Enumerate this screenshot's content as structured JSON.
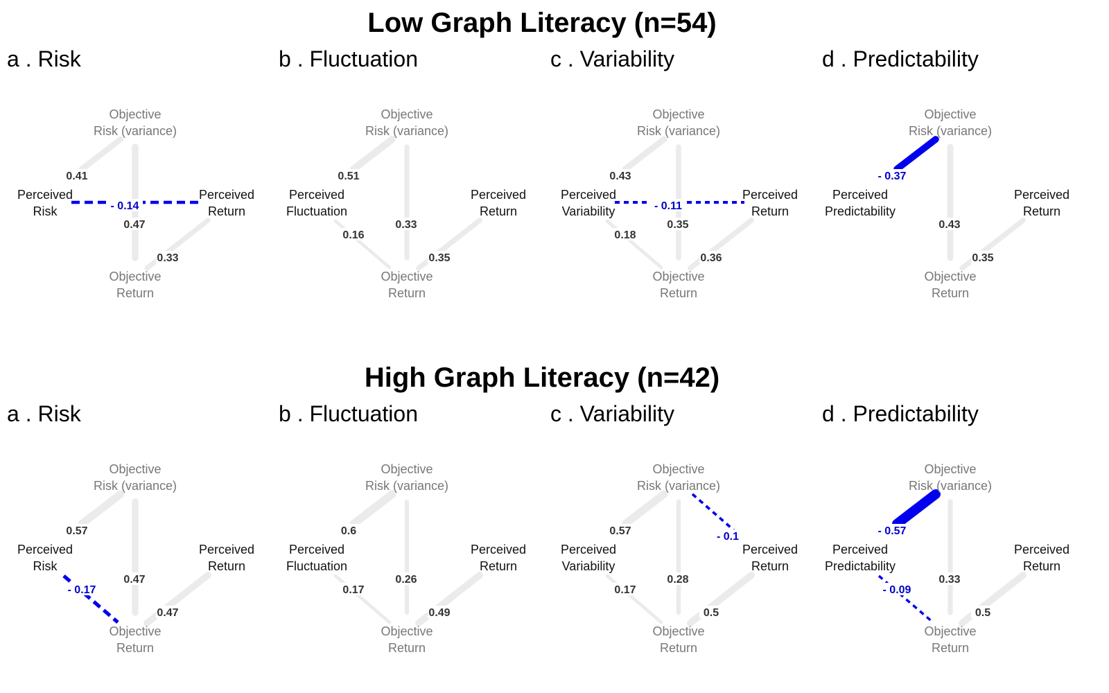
{
  "colors": {
    "positive_edge": "#ebebeb",
    "negative_edge": "#0000ee",
    "positive_label": "#333333",
    "negative_label": "#0000cc",
    "objective_node_text": "#777777",
    "perceived_node_text": "#111111"
  },
  "nodes": {
    "objective_risk": [
      "Objective",
      "Risk (variance)"
    ],
    "objective_return": [
      "Objective",
      "Return"
    ],
    "perceived_return": [
      "Perceived",
      "Return"
    ]
  },
  "groups": [
    {
      "title": "Low Graph Literacy (n=54)",
      "panels": [
        {
          "title": "a . Risk",
          "perceived_measure": [
            "Perceived",
            "Risk"
          ],
          "edges": [
            {
              "from": "objective_risk",
              "to": "perceived_measure",
              "weight": 0.41,
              "label": "0.41",
              "sign": "positive"
            },
            {
              "from": "objective_risk",
              "to": "objective_return",
              "weight": 0.47,
              "label": "0.47",
              "sign": "positive"
            },
            {
              "from": "perceived_return",
              "to": "objective_return",
              "weight": 0.33,
              "label": "0.33",
              "sign": "positive"
            },
            {
              "from": "perceived_measure",
              "to": "perceived_return",
              "weight": -0.14,
              "label": "- 0.14",
              "sign": "negative"
            }
          ]
        },
        {
          "title": "b . Fluctuation",
          "perceived_measure": [
            "Perceived",
            "Fluctuation"
          ],
          "edges": [
            {
              "from": "objective_risk",
              "to": "perceived_measure",
              "weight": 0.51,
              "label": "0.51",
              "sign": "positive"
            },
            {
              "from": "objective_risk",
              "to": "objective_return",
              "weight": 0.33,
              "label": "0.33",
              "sign": "positive"
            },
            {
              "from": "perceived_measure",
              "to": "objective_return",
              "weight": 0.16,
              "label": "0.16",
              "sign": "positive"
            },
            {
              "from": "perceived_return",
              "to": "objective_return",
              "weight": 0.35,
              "label": "0.35",
              "sign": "positive"
            }
          ]
        },
        {
          "title": "c . Variability",
          "perceived_measure": [
            "Perceived",
            "Variability"
          ],
          "edges": [
            {
              "from": "objective_risk",
              "to": "perceived_measure",
              "weight": 0.43,
              "label": "0.43",
              "sign": "positive"
            },
            {
              "from": "objective_risk",
              "to": "objective_return",
              "weight": 0.35,
              "label": "0.35",
              "sign": "positive"
            },
            {
              "from": "perceived_measure",
              "to": "objective_return",
              "weight": 0.18,
              "label": "0.18",
              "sign": "positive"
            },
            {
              "from": "perceived_return",
              "to": "objective_return",
              "weight": 0.36,
              "label": "0.36",
              "sign": "positive"
            },
            {
              "from": "perceived_measure",
              "to": "perceived_return",
              "weight": -0.11,
              "label": "- 0.11",
              "sign": "negative"
            }
          ]
        },
        {
          "title": "d . Predictability",
          "perceived_measure": [
            "Perceived",
            "Predictability"
          ],
          "edges": [
            {
              "from": "objective_risk",
              "to": "perceived_measure",
              "weight": -0.37,
              "label": "- 0.37",
              "sign": "negative"
            },
            {
              "from": "objective_risk",
              "to": "objective_return",
              "weight": 0.43,
              "label": "0.43",
              "sign": "positive"
            },
            {
              "from": "perceived_return",
              "to": "objective_return",
              "weight": 0.35,
              "label": "0.35",
              "sign": "positive"
            }
          ]
        }
      ]
    },
    {
      "title": "High Graph Literacy (n=42)",
      "panels": [
        {
          "title": "a . Risk",
          "perceived_measure": [
            "Perceived",
            "Risk"
          ],
          "edges": [
            {
              "from": "objective_risk",
              "to": "perceived_measure",
              "weight": 0.57,
              "label": "0.57",
              "sign": "positive"
            },
            {
              "from": "objective_risk",
              "to": "objective_return",
              "weight": 0.47,
              "label": "0.47",
              "sign": "positive"
            },
            {
              "from": "perceived_return",
              "to": "objective_return",
              "weight": 0.47,
              "label": "0.47",
              "sign": "positive"
            },
            {
              "from": "perceived_measure",
              "to": "objective_return",
              "weight": -0.17,
              "label": "- 0.17",
              "sign": "negative"
            }
          ]
        },
        {
          "title": "b . Fluctuation",
          "perceived_measure": [
            "Perceived",
            "Fluctuation"
          ],
          "edges": [
            {
              "from": "objective_risk",
              "to": "perceived_measure",
              "weight": 0.6,
              "label": "0.6",
              "sign": "positive"
            },
            {
              "from": "objective_risk",
              "to": "objective_return",
              "weight": 0.26,
              "label": "0.26",
              "sign": "positive"
            },
            {
              "from": "perceived_measure",
              "to": "objective_return",
              "weight": 0.17,
              "label": "0.17",
              "sign": "positive"
            },
            {
              "from": "perceived_return",
              "to": "objective_return",
              "weight": 0.49,
              "label": "0.49",
              "sign": "positive"
            }
          ]
        },
        {
          "title": "c . Variability",
          "perceived_measure": [
            "Perceived",
            "Variability"
          ],
          "edges": [
            {
              "from": "objective_risk",
              "to": "perceived_measure",
              "weight": 0.57,
              "label": "0.57",
              "sign": "positive"
            },
            {
              "from": "objective_risk",
              "to": "objective_return",
              "weight": 0.28,
              "label": "0.28",
              "sign": "positive"
            },
            {
              "from": "perceived_measure",
              "to": "objective_return",
              "weight": 0.17,
              "label": "0.17",
              "sign": "positive"
            },
            {
              "from": "perceived_return",
              "to": "objective_return",
              "weight": 0.5,
              "label": "0.5",
              "sign": "positive"
            },
            {
              "from": "objective_risk",
              "to": "perceived_return",
              "weight": -0.1,
              "label": "- 0.1",
              "sign": "negative"
            }
          ]
        },
        {
          "title": "d . Predictability",
          "perceived_measure": [
            "Perceived",
            "Predictability"
          ],
          "edges": [
            {
              "from": "objective_risk",
              "to": "perceived_measure",
              "weight": -0.57,
              "label": "- 0.57",
              "sign": "negative"
            },
            {
              "from": "objective_risk",
              "to": "objective_return",
              "weight": 0.33,
              "label": "0.33",
              "sign": "positive"
            },
            {
              "from": "perceived_return",
              "to": "objective_return",
              "weight": 0.5,
              "label": "0.5",
              "sign": "positive"
            },
            {
              "from": "perceived_measure",
              "to": "objective_return",
              "weight": -0.09,
              "label": "- 0.09",
              "sign": "negative"
            }
          ]
        }
      ]
    }
  ]
}
